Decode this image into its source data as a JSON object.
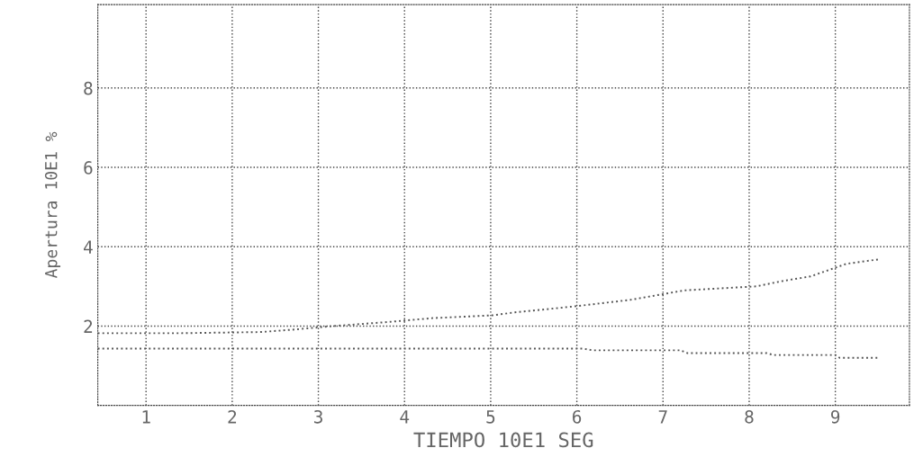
{
  "chart_data": {
    "type": "line",
    "xlabel": "TIEMPO 10E1 SEG",
    "ylabel": "Apertura 10E1 %",
    "xlim": [
      0.44,
      9.86
    ],
    "xticks": [
      1,
      2,
      3,
      4,
      5,
      6,
      7,
      8,
      9
    ],
    "ylim": [
      0,
      10.1
    ],
    "yticks": [
      2,
      4,
      6,
      8
    ],
    "grid": true,
    "line_style": "dotted",
    "marker": "none",
    "series": [
      {
        "color": "#555555",
        "x": [
          0.44,
          1.4,
          2.34,
          2.76,
          3.17,
          3.8,
          4.32,
          5.02,
          5.26,
          5.99,
          6.62,
          7.25,
          8.08,
          8.4,
          8.71,
          9.13,
          9.5
        ],
        "values": [
          1.82,
          1.82,
          1.85,
          1.92,
          2.0,
          2.1,
          2.2,
          2.27,
          2.34,
          2.5,
          2.66,
          2.9,
          3.0,
          3.14,
          3.25,
          3.57,
          3.68
        ]
      },
      {
        "color": "#555555",
        "x": [
          0.44,
          6.08,
          6.18,
          7.2,
          7.28,
          8.2,
          8.28,
          9.0,
          9.05,
          9.5
        ],
        "values": [
          1.43,
          1.43,
          1.39,
          1.39,
          1.32,
          1.32,
          1.27,
          1.27,
          1.2,
          1.2
        ]
      }
    ]
  }
}
